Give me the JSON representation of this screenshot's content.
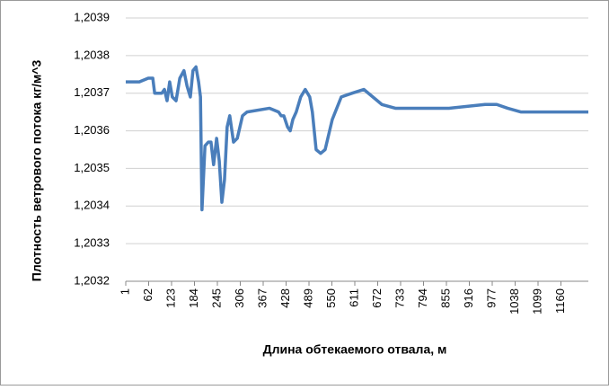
{
  "chart_data": {
    "type": "line",
    "xlabel": "Длина обтекаемого отвала, м",
    "ylabel": "Плотность ветрового потока кг/м^3",
    "x": [
      1,
      37,
      61,
      73,
      78,
      97,
      104,
      111,
      118,
      125,
      135,
      145,
      156,
      164,
      173,
      180,
      188,
      195,
      200,
      204,
      212,
      221,
      228,
      235,
      243,
      250,
      257,
      264,
      271,
      278,
      288,
      298,
      312,
      324,
      384,
      408,
      415,
      422,
      432,
      439,
      446,
      455,
      467,
      479,
      491,
      498,
      508,
      520,
      532,
      551,
      575,
      604,
      635,
      659,
      683,
      719,
      766,
      862,
      958,
      989,
      1018,
      1054,
      1125,
      1233
    ],
    "series": [
      {
        "name": "Плотность",
        "color": "#4a7ebb",
        "values": [
          1.20373,
          1.20373,
          1.20374,
          1.20374,
          1.2037,
          1.2037,
          1.20371,
          1.20368,
          1.20373,
          1.20369,
          1.20368,
          1.20374,
          1.20376,
          1.20372,
          1.20369,
          1.20376,
          1.20377,
          1.20373,
          1.20369,
          1.20339,
          1.20356,
          1.20357,
          1.20357,
          1.20351,
          1.20358,
          1.20352,
          1.20341,
          1.20347,
          1.20361,
          1.20364,
          1.20357,
          1.20358,
          1.20364,
          1.20365,
          1.20366,
          1.20365,
          1.20364,
          1.20364,
          1.20361,
          1.2036,
          1.20363,
          1.20365,
          1.20369,
          1.20371,
          1.20369,
          1.20365,
          1.20355,
          1.20354,
          1.20355,
          1.20363,
          1.20369,
          1.2037,
          1.20371,
          1.20369,
          1.20367,
          1.20366,
          1.20366,
          1.20366,
          1.20367,
          1.20367,
          1.20366,
          1.20365,
          1.20365,
          1.20365
        ]
      }
    ],
    "xlim": [
      1,
      1233
    ],
    "xticks": [
      1,
      62,
      123,
      184,
      245,
      306,
      367,
      428,
      489,
      550,
      611,
      672,
      733,
      794,
      855,
      916,
      977,
      1038,
      1099,
      1160
    ],
    "ylim": [
      1.2032,
      1.2039
    ],
    "yticks": [
      {
        "value": 1.2032,
        "label": "1,2032"
      },
      {
        "value": 1.2033,
        "label": "1,2033"
      },
      {
        "value": 1.2034,
        "label": "1,2034"
      },
      {
        "value": 1.2035,
        "label": "1,2035"
      },
      {
        "value": 1.2036,
        "label": "1,2036"
      },
      {
        "value": 1.2037,
        "label": "1,2037"
      },
      {
        "value": 1.2038,
        "label": "1,2038"
      },
      {
        "value": 1.2039,
        "label": "1,2039"
      }
    ],
    "grid": true
  }
}
